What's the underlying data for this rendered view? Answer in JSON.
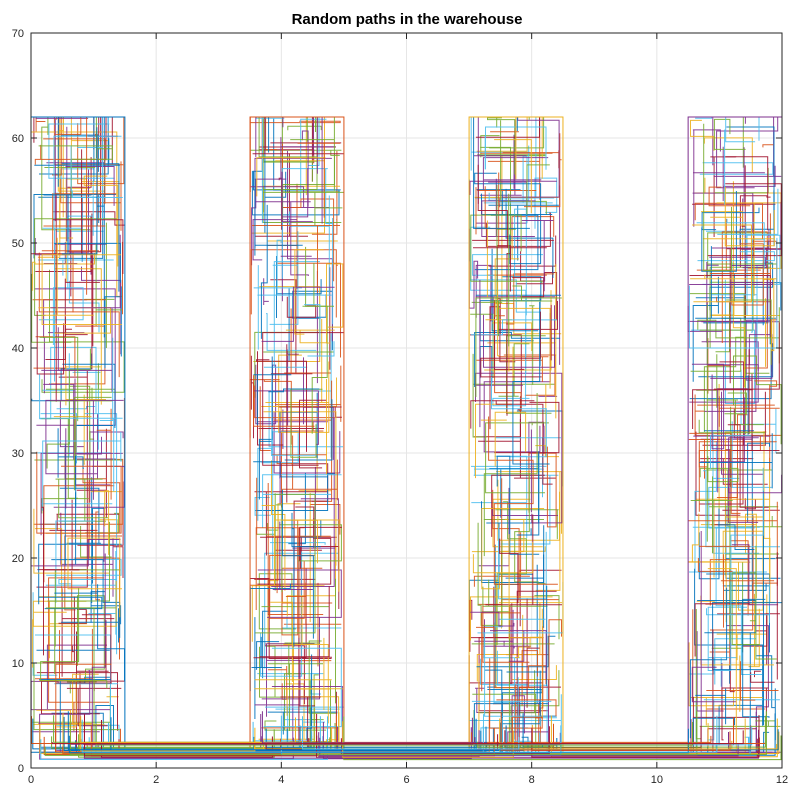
{
  "chart_data": {
    "type": "line",
    "title": "Random paths in the warehouse",
    "xlabel": "",
    "ylabel": "",
    "xlim": [
      0,
      12
    ],
    "ylim": [
      0,
      70
    ],
    "xticks": [
      0,
      2,
      4,
      6,
      8,
      10,
      12
    ],
    "yticks": [
      0,
      10,
      20,
      30,
      40,
      50,
      60,
      70
    ],
    "grid": true,
    "aisles": [
      {
        "x_range": [
          0,
          1.5
        ],
        "y_range": [
          1.5,
          62
        ]
      },
      {
        "x_range": [
          3.5,
          5.0
        ],
        "y_range": [
          1.5,
          62
        ]
      },
      {
        "x_range": [
          7.0,
          8.5
        ],
        "y_range": [
          1.5,
          62
        ]
      },
      {
        "x_range": [
          10.5,
          12.0
        ],
        "y_range": [
          1.5,
          62
        ]
      }
    ],
    "cross_aisle": {
      "x_range": [
        0,
        12
      ],
      "y_range": [
        0.8,
        2.5
      ]
    },
    "series_colors": [
      "#0072BD",
      "#D95319",
      "#EDB120",
      "#7E2F8E",
      "#77AC30",
      "#4DBEEE",
      "#A2142F"
    ],
    "path_count_per_aisle": 220
  }
}
